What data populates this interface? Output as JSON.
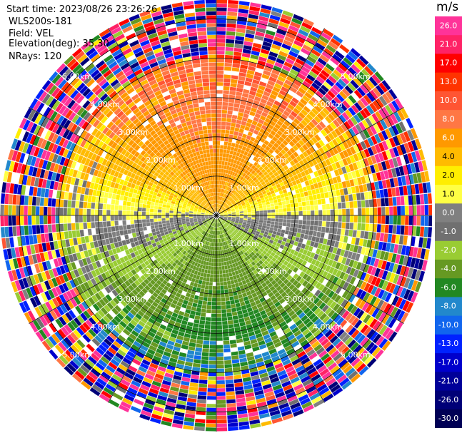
{
  "header": {
    "start_time": "Start time: 2023/08/26 23:26:26",
    "station": "WLS200s-181",
    "field": "Field: VEL",
    "elevation": "Elevation(deg): 35.30",
    "nrays": "NRays: 120"
  },
  "chart_data": {
    "type": "ppi",
    "field": "VEL",
    "units": "m/s",
    "n_rays": 120,
    "n_gates": 55,
    "max_range_km": 5.5,
    "range_rings_km": [
      1,
      2,
      3,
      4,
      5
    ],
    "range_labels": [
      "1.00km",
      "2.00km",
      "3.00km",
      "4.00km",
      "5.00km"
    ],
    "spokes_deg": [
      0,
      30,
      60,
      90,
      120,
      150,
      180,
      210,
      240,
      270,
      300,
      330
    ],
    "colorbar": {
      "unit_label": "m/s",
      "ticks": [
        "26.0",
        "21.0",
        "17.0",
        "13.0",
        "10.0",
        "8.0",
        "6.0",
        "4.0",
        "2.0",
        "1.0",
        "0.0",
        "-1.0",
        "-2.0",
        "-4.0",
        "-6.0",
        "-8.0",
        "-10.0",
        "-13.0",
        "-17.0",
        "-21.0",
        "-26.0",
        "-30.0"
      ],
      "colors": [
        "#ff3399",
        "#ff2266",
        "#ff0000",
        "#ff3300",
        "#ff5533",
        "#ff7744",
        "#ff9900",
        "#ffbb00",
        "#ffee00",
        "#ffff44",
        "#808080",
        "#707070",
        "#99cc33",
        "#669922",
        "#228822",
        "#2288cc",
        "#1166ee",
        "#0022ff",
        "#0000cc",
        "#000099",
        "#000077",
        "#000055"
      ]
    }
  }
}
